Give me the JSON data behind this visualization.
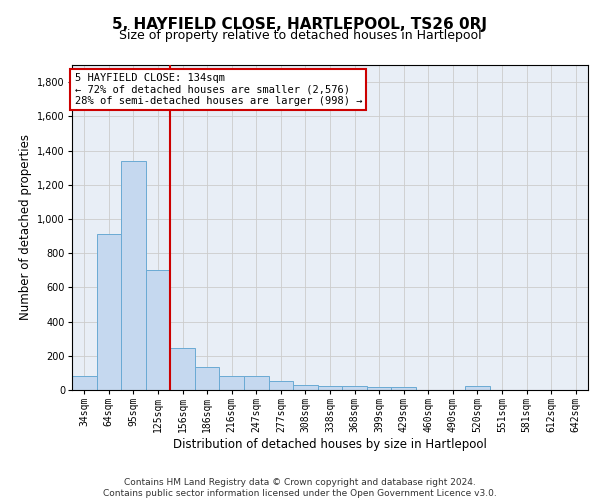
{
  "title": "5, HAYFIELD CLOSE, HARTLEPOOL, TS26 0RJ",
  "subtitle": "Size of property relative to detached houses in Hartlepool",
  "xlabel": "Distribution of detached houses by size in Hartlepool",
  "ylabel": "Number of detached properties",
  "categories": [
    "34sqm",
    "64sqm",
    "95sqm",
    "125sqm",
    "156sqm",
    "186sqm",
    "216sqm",
    "247sqm",
    "277sqm",
    "308sqm",
    "338sqm",
    "368sqm",
    "399sqm",
    "429sqm",
    "460sqm",
    "490sqm",
    "520sqm",
    "551sqm",
    "581sqm",
    "612sqm",
    "642sqm"
  ],
  "values": [
    80,
    910,
    1340,
    700,
    245,
    135,
    80,
    80,
    50,
    30,
    25,
    25,
    15,
    15,
    0,
    0,
    25,
    0,
    0,
    0,
    0
  ],
  "bar_color": "#c5d8ef",
  "bar_edge_color": "#6aaad4",
  "vline_color": "#cc0000",
  "annotation_text": "5 HAYFIELD CLOSE: 134sqm\n← 72% of detached houses are smaller (2,576)\n28% of semi-detached houses are larger (998) →",
  "annotation_box_color": "#ffffff",
  "annotation_box_edge_color": "#cc0000",
  "ylim": [
    0,
    1900
  ],
  "yticks": [
    0,
    200,
    400,
    600,
    800,
    1000,
    1200,
    1400,
    1600,
    1800
  ],
  "grid_color": "#cccccc",
  "bg_color": "#e8eef6",
  "footer_line1": "Contains HM Land Registry data © Crown copyright and database right 2024.",
  "footer_line2": "Contains public sector information licensed under the Open Government Licence v3.0.",
  "title_fontsize": 11,
  "subtitle_fontsize": 9,
  "label_fontsize": 8.5,
  "tick_fontsize": 7,
  "footer_fontsize": 6.5,
  "annot_fontsize": 7.5
}
